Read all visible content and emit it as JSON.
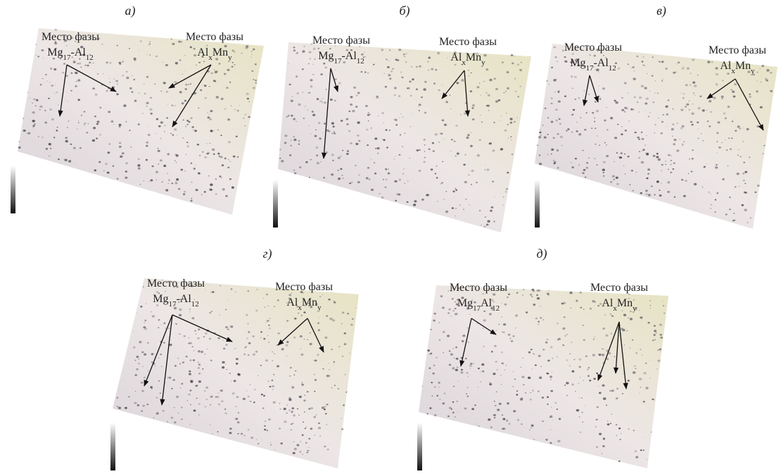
{
  "panels": [
    {
      "label": "а)",
      "annotations": [
        {
          "caption": "Место фазы",
          "formula": [
            {
              "text": "Mg",
              "sub": "17"
            },
            {
              "text": "-Al",
              "sub": "12"
            }
          ]
        },
        {
          "caption": "Место фазы",
          "formula": [
            {
              "text": "Al",
              "sub": "x"
            },
            {
              "text": "Mn",
              "sub": "y"
            }
          ]
        }
      ]
    },
    {
      "label": "б)",
      "annotations": [
        {
          "caption": "Место фазы",
          "formula": [
            {
              "text": "Mg",
              "sub": "17"
            },
            {
              "text": "-Al",
              "sub": "12"
            }
          ]
        },
        {
          "caption": "Место фазы",
          "formula": [
            {
              "text": "Al",
              "sub": "x"
            },
            {
              "text": "Mn",
              "sub": "y"
            }
          ]
        }
      ]
    },
    {
      "label": "в)",
      "annotations": [
        {
          "caption": "Место фазы",
          "formula": [
            {
              "text": "Mg",
              "sub": "17"
            },
            {
              "text": "-Al",
              "sub": "12"
            }
          ]
        },
        {
          "caption": "Место фазы",
          "formula": [
            {
              "text": "Al",
              "sub": "x"
            },
            {
              "text": "Mn",
              "sub": "y"
            }
          ]
        }
      ]
    },
    {
      "label": "г)",
      "annotations": [
        {
          "caption": "Место фазы",
          "formula": [
            {
              "text": "Mg",
              "sub": "17"
            },
            {
              "text": "-Al",
              "sub": "12"
            }
          ]
        },
        {
          "caption": "Место фазы",
          "formula": [
            {
              "text": "Al",
              "sub": "x"
            },
            {
              "text": "Mn",
              "sub": "y"
            }
          ]
        }
      ]
    },
    {
      "label": "д)",
      "annotations": [
        {
          "caption": "Место фазы",
          "formula": [
            {
              "text": "Mg",
              "sub": "17"
            },
            {
              "text": "Al",
              "sub": "12"
            }
          ]
        },
        {
          "caption": "Место фазы",
          "formula": [
            {
              "text": "Al",
              "sub": "x"
            },
            {
              "text": "Mn",
              "sub": "y"
            }
          ]
        }
      ]
    }
  ]
}
